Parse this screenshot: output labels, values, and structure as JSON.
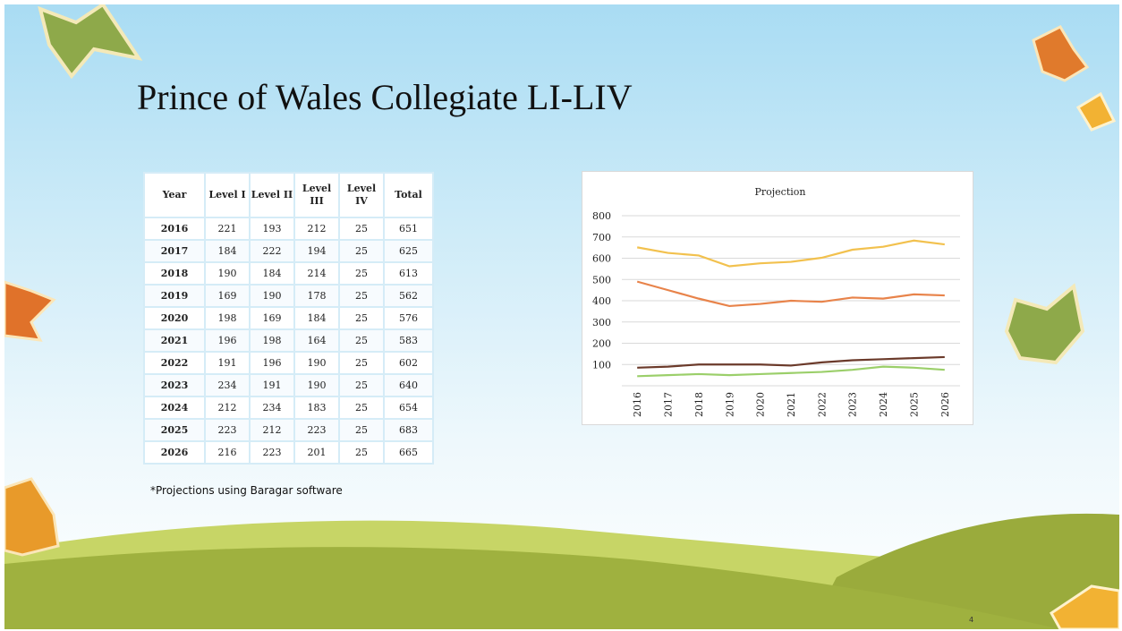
{
  "title": "Prince of Wales Collegiate LI-LIV",
  "table": {
    "header": [
      "Year",
      "Level I",
      "Level II",
      "Level III",
      "Level IV",
      "Total"
    ],
    "rows": [
      [
        "2016",
        "221",
        "193",
        "212",
        "25",
        "651"
      ],
      [
        "2017",
        "184",
        "222",
        "194",
        "25",
        "625"
      ],
      [
        "2018",
        "190",
        "184",
        "214",
        "25",
        "613"
      ],
      [
        "2019",
        "169",
        "190",
        "178",
        "25",
        "562"
      ],
      [
        "2020",
        "198",
        "169",
        "184",
        "25",
        "576"
      ],
      [
        "2021",
        "196",
        "198",
        "164",
        "25",
        "583"
      ],
      [
        "2022",
        "191",
        "196",
        "190",
        "25",
        "602"
      ],
      [
        "2023",
        "234",
        "191",
        "190",
        "25",
        "640"
      ],
      [
        "2024",
        "212",
        "234",
        "183",
        "25",
        "654"
      ],
      [
        "2025",
        "223",
        "212",
        "223",
        "25",
        "683"
      ],
      [
        "2026",
        "216",
        "223",
        "201",
        "25",
        "665"
      ]
    ]
  },
  "footnote": "*Projections using Baragar software",
  "page_number": "4",
  "chart_data": {
    "type": "line",
    "title": "Projection",
    "categories": [
      "2016",
      "2017",
      "2018",
      "2019",
      "2020",
      "2021",
      "2022",
      "2023",
      "2024",
      "2025",
      "2026"
    ],
    "series": [
      {
        "color": "#f2c14e",
        "values": [
          651,
          625,
          613,
          562,
          576,
          583,
          602,
          640,
          654,
          683,
          665
        ]
      },
      {
        "color": "#e8834a",
        "values": [
          490,
          450,
          410,
          375,
          385,
          400,
          395,
          415,
          410,
          430,
          425
        ]
      },
      {
        "color": "#6b3a2a",
        "values": [
          85,
          90,
          100,
          100,
          100,
          95,
          110,
          120,
          125,
          130,
          135
        ]
      },
      {
        "color": "#9bcf6a",
        "values": [
          45,
          50,
          55,
          50,
          55,
          60,
          65,
          75,
          90,
          85,
          75
        ]
      }
    ],
    "ylim": [
      0,
      800
    ],
    "yticks": [
      100,
      200,
      300,
      400,
      500,
      600,
      700,
      800
    ],
    "grid": true
  }
}
